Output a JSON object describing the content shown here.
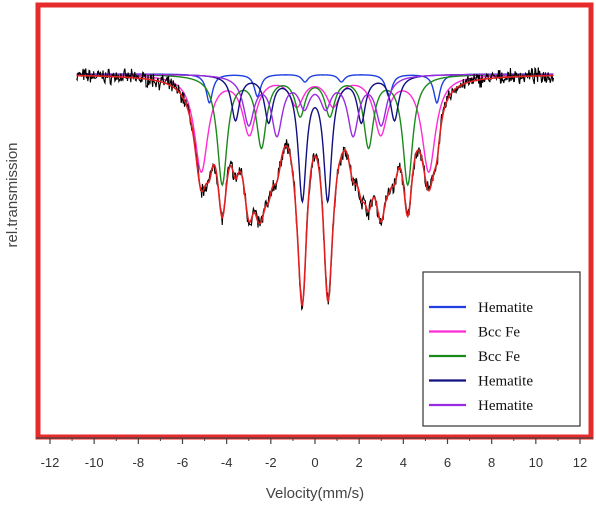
{
  "chart_data": {
    "type": "line",
    "title": "",
    "xlabel": "Velocity(mm/s)",
    "ylabel": "rel.transmission",
    "xlim": [
      -12,
      12
    ],
    "x_ticks": [
      "-12",
      "-10",
      "-8",
      "-6",
      "-4",
      "-2",
      "0",
      "2",
      "4",
      "6",
      "8",
      "10",
      "12"
    ],
    "grid": false,
    "frame_color": "#e52b2b",
    "legend_position": "bottom-right",
    "series": [
      {
        "name": "Hematite",
        "color": "#1f3fe0",
        "kind": "sextet",
        "shift": 0.37,
        "field_split": [
          10.3,
          5.95,
          1.65
        ],
        "width": 0.35,
        "depth": [
          0.045,
          0.035,
          0.012
        ]
      },
      {
        "name": "Bcc Fe",
        "color": "#ff2bd6",
        "kind": "sextet",
        "shift": 0.0,
        "field_split": [
          10.3,
          5.95,
          1.65
        ],
        "width": 0.75,
        "depth": [
          0.15,
          0.09,
          0.045
        ]
      },
      {
        "name": "Bcc Fe",
        "color": "#1a8a1a",
        "kind": "sextet",
        "shift": 0.0,
        "field_split": [
          8.4,
          4.85,
          1.34
        ],
        "width": 0.55,
        "depth": [
          0.17,
          0.11,
          0.06
        ]
      },
      {
        "name": "Hematite",
        "color": "#101080",
        "kind": "sextet",
        "shift": 0.0,
        "field_split": [
          7.2,
          4.2,
          1.15
        ],
        "width": 0.45,
        "depth": [
          0.07,
          0.07,
          0.19
        ]
      },
      {
        "name": "Hematite",
        "color": "#9a2be0",
        "kind": "sextet",
        "shift": 0.0,
        "field_split": [
          6.0,
          3.45,
          0.96
        ],
        "width": 0.6,
        "depth": [
          0.075,
          0.09,
          0.045
        ]
      }
    ],
    "fit": {
      "name": "fit",
      "color": "#e02020"
    },
    "measured": {
      "name": "data",
      "color": "#000000"
    },
    "legend_entries": [
      "Hematite",
      "Bcc Fe",
      "Bcc Fe",
      "Hematite",
      "Hematite"
    ]
  }
}
